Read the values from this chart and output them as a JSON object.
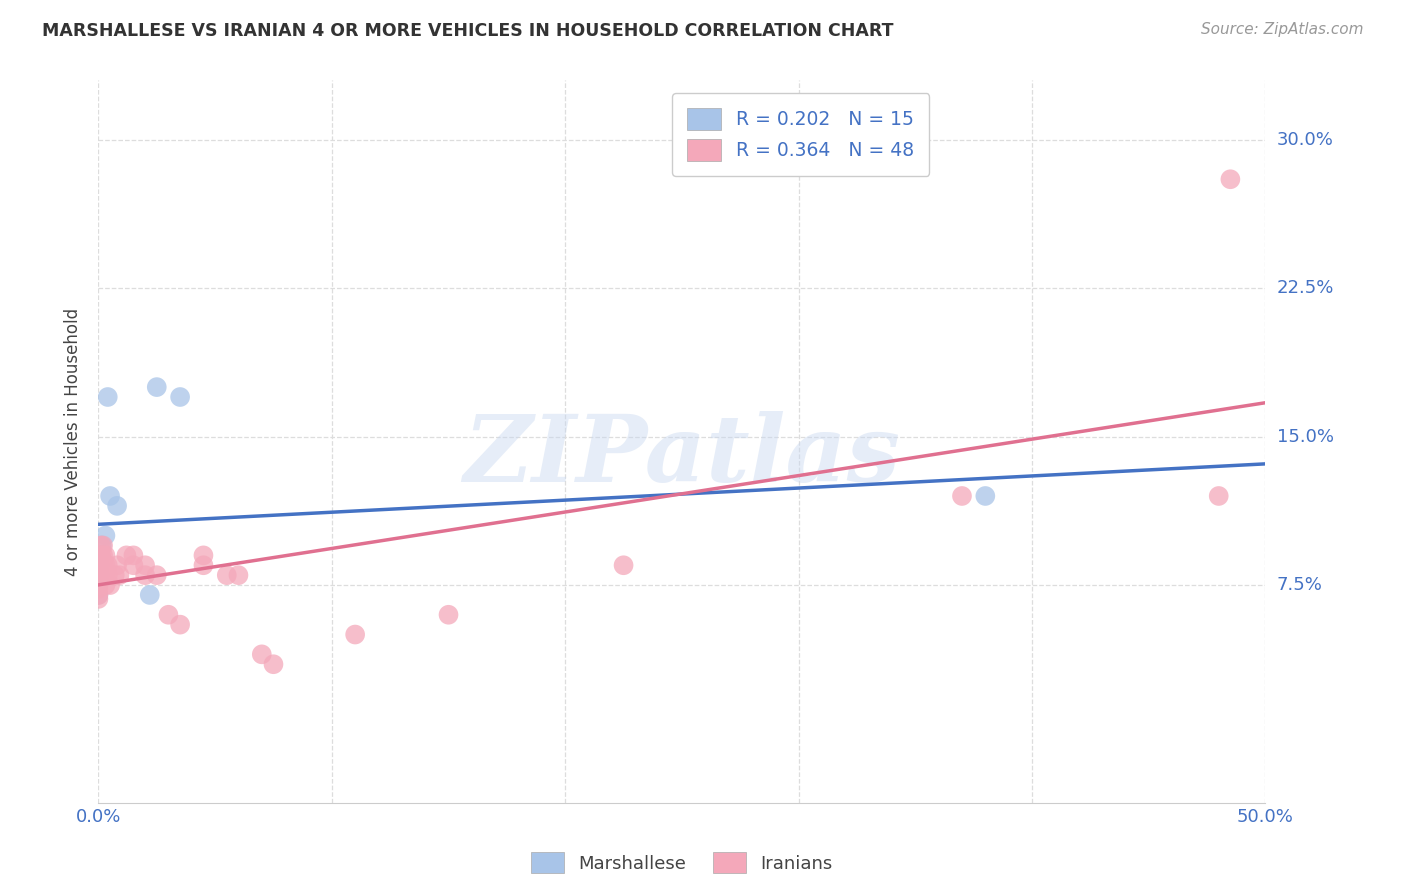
{
  "title": "MARSHALLESE VS IRANIAN 4 OR MORE VEHICLES IN HOUSEHOLD CORRELATION CHART",
  "source": "Source: ZipAtlas.com",
  "ylabel_label": "4 or more Vehicles in Household",
  "xlim": [
    0.0,
    50.0
  ],
  "ylim": [
    -3.5,
    33.0
  ],
  "legend_blue_r": "0.202",
  "legend_blue_n": "15",
  "legend_pink_r": "0.364",
  "legend_pink_n": "48",
  "blue_color": "#A8C4E8",
  "pink_color": "#F4A8BA",
  "blue_line_color": "#4472C4",
  "pink_line_color": "#E07090",
  "blue_scatter": [
    [
      0.4,
      17.0
    ],
    [
      2.5,
      17.5
    ],
    [
      3.5,
      17.0
    ],
    [
      0.5,
      12.0
    ],
    [
      0.8,
      11.5
    ],
    [
      0.3,
      10.0
    ],
    [
      0.15,
      9.5
    ],
    [
      0.1,
      9.0
    ],
    [
      0.05,
      8.5
    ],
    [
      0.05,
      8.0
    ],
    [
      0.0,
      8.0
    ],
    [
      0.0,
      7.5
    ],
    [
      0.0,
      7.0
    ],
    [
      2.2,
      7.0
    ],
    [
      38.0,
      12.0
    ]
  ],
  "pink_scatter": [
    [
      0.0,
      8.0
    ],
    [
      0.0,
      7.8
    ],
    [
      0.0,
      7.5
    ],
    [
      0.0,
      7.3
    ],
    [
      0.0,
      7.0
    ],
    [
      0.0,
      6.8
    ],
    [
      0.05,
      8.5
    ],
    [
      0.05,
      8.2
    ],
    [
      0.05,
      8.0
    ],
    [
      0.1,
      9.5
    ],
    [
      0.1,
      9.0
    ],
    [
      0.1,
      8.5
    ],
    [
      0.15,
      8.8
    ],
    [
      0.15,
      8.3
    ],
    [
      0.2,
      9.5
    ],
    [
      0.2,
      9.0
    ],
    [
      0.2,
      8.5
    ],
    [
      0.2,
      8.0
    ],
    [
      0.3,
      9.0
    ],
    [
      0.3,
      8.5
    ],
    [
      0.3,
      8.0
    ],
    [
      0.3,
      7.5
    ],
    [
      0.4,
      8.5
    ],
    [
      0.4,
      8.0
    ],
    [
      0.5,
      7.5
    ],
    [
      0.7,
      8.0
    ],
    [
      0.8,
      8.5
    ],
    [
      0.9,
      8.0
    ],
    [
      1.2,
      9.0
    ],
    [
      1.5,
      9.0
    ],
    [
      1.5,
      8.5
    ],
    [
      2.0,
      8.5
    ],
    [
      2.0,
      8.0
    ],
    [
      2.5,
      8.0
    ],
    [
      3.0,
      6.0
    ],
    [
      3.5,
      5.5
    ],
    [
      4.5,
      9.0
    ],
    [
      4.5,
      8.5
    ],
    [
      5.5,
      8.0
    ],
    [
      6.0,
      8.0
    ],
    [
      7.0,
      4.0
    ],
    [
      7.5,
      3.5
    ],
    [
      11.0,
      5.0
    ],
    [
      15.0,
      6.0
    ],
    [
      22.5,
      8.5
    ],
    [
      37.0,
      12.0
    ],
    [
      48.5,
      28.0
    ],
    [
      48.0,
      12.0
    ]
  ],
  "watermark_text": "ZIPatlas",
  "background_color": "#FFFFFF",
  "grid_color": "#DDDDDD",
  "ytick_vals": [
    7.5,
    15.0,
    22.5,
    30.0
  ],
  "xtick_vals": [
    0.0,
    10.0,
    20.0,
    30.0,
    40.0,
    50.0
  ]
}
